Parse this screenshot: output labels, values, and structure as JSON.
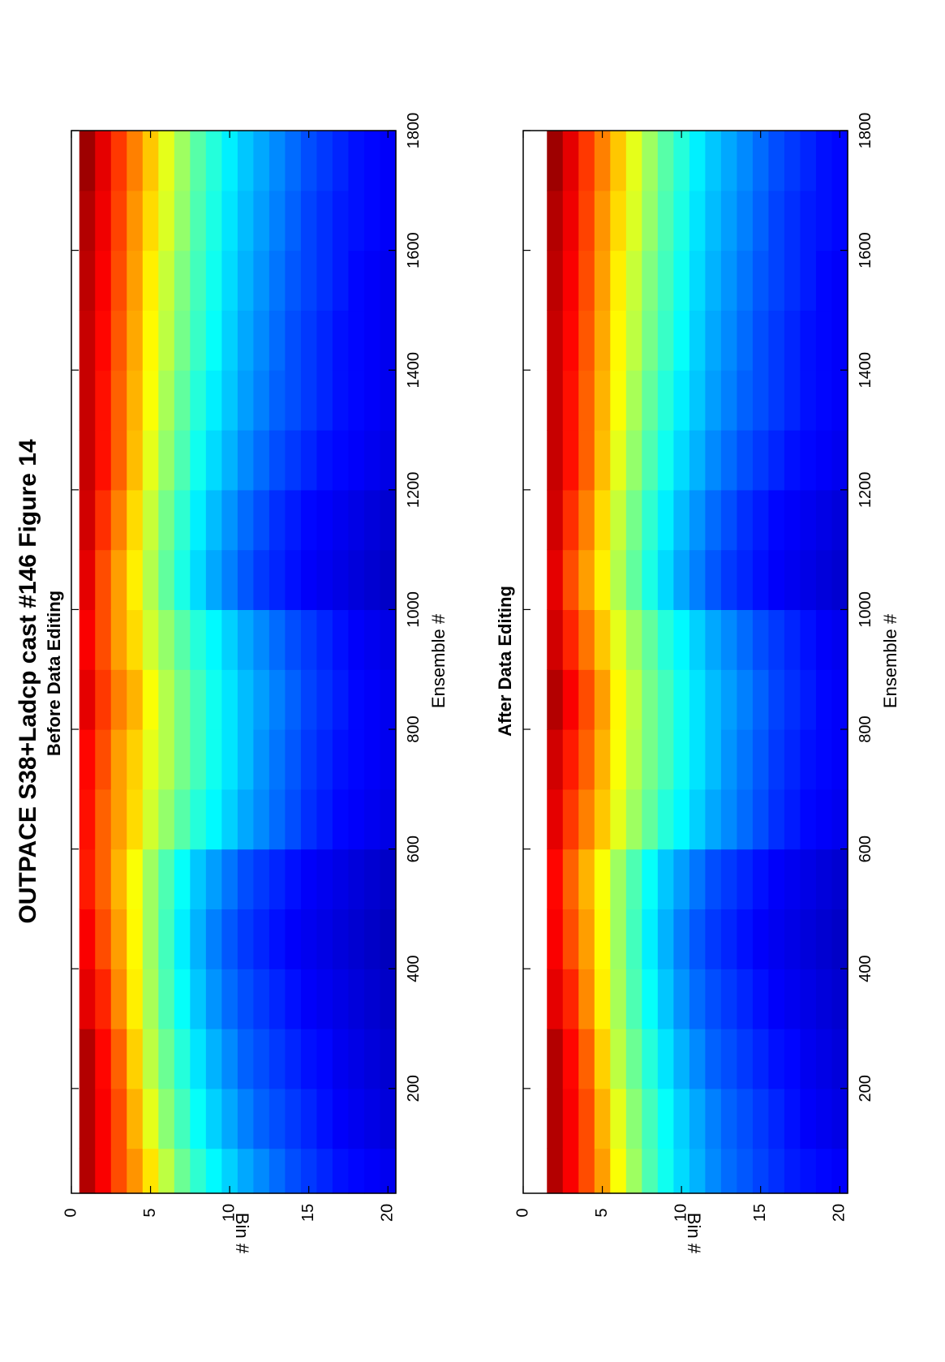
{
  "figure": {
    "title": "OUTPACE S38+Ladcp cast #146  Figure 14"
  },
  "chart_data": [
    {
      "type": "heatmap",
      "title": "Before Data Editing",
      "xlabel": "Ensemble #",
      "ylabel": "Bin #",
      "xlim": [
        25,
        1800
      ],
      "ylim": [
        0,
        20.5
      ],
      "xticks": [
        200,
        400,
        600,
        800,
        1000,
        1200,
        1400,
        1600,
        1800
      ],
      "yticks": [
        0,
        5,
        10,
        15,
        20
      ],
      "colormap": "jet",
      "bins": [
        1,
        2,
        3,
        4,
        5,
        6,
        7,
        8,
        9,
        10,
        11,
        12,
        13,
        14,
        15,
        16,
        17,
        18,
        19,
        20
      ],
      "ensemble_columns": [
        50,
        150,
        250,
        350,
        450,
        550,
        650,
        750,
        850,
        950,
        1050,
        1150,
        1250,
        1350,
        1450,
        1550,
        1650,
        1750
      ],
      "normalized_intensity_by_bin": [
        [
          0.95,
          0.95,
          0.95,
          0.9,
          0.88,
          0.85,
          0.86,
          0.87,
          0.9,
          0.88,
          0.9,
          0.92,
          0.93,
          0.93,
          0.93,
          0.94,
          0.95,
          0.97
        ],
        [
          0.88,
          0.88,
          0.87,
          0.84,
          0.8,
          0.78,
          0.78,
          0.8,
          0.82,
          0.8,
          0.8,
          0.83,
          0.86,
          0.86,
          0.87,
          0.88,
          0.89,
          0.9
        ],
        [
          0.8,
          0.8,
          0.78,
          0.74,
          0.72,
          0.7,
          0.72,
          0.72,
          0.75,
          0.72,
          0.72,
          0.75,
          0.78,
          0.78,
          0.79,
          0.8,
          0.81,
          0.82
        ],
        [
          0.73,
          0.7,
          0.67,
          0.64,
          0.63,
          0.62,
          0.66,
          0.67,
          0.7,
          0.66,
          0.64,
          0.66,
          0.69,
          0.7,
          0.71,
          0.72,
          0.73,
          0.75
        ],
        [
          0.65,
          0.6,
          0.56,
          0.54,
          0.53,
          0.53,
          0.58,
          0.6,
          0.62,
          0.58,
          0.55,
          0.57,
          0.6,
          0.62,
          0.63,
          0.64,
          0.66,
          0.68
        ],
        [
          0.56,
          0.51,
          0.48,
          0.45,
          0.44,
          0.45,
          0.52,
          0.55,
          0.55,
          0.52,
          0.47,
          0.49,
          0.52,
          0.54,
          0.56,
          0.57,
          0.59,
          0.6
        ],
        [
          0.48,
          0.44,
          0.41,
          0.38,
          0.36,
          0.38,
          0.46,
          0.49,
          0.49,
          0.46,
          0.4,
          0.42,
          0.45,
          0.47,
          0.49,
          0.5,
          0.52,
          0.53
        ],
        [
          0.42,
          0.38,
          0.35,
          0.32,
          0.3,
          0.32,
          0.41,
          0.44,
          0.44,
          0.41,
          0.34,
          0.36,
          0.39,
          0.41,
          0.43,
          0.44,
          0.45,
          0.46
        ],
        [
          0.37,
          0.33,
          0.3,
          0.27,
          0.25,
          0.28,
          0.37,
          0.39,
          0.39,
          0.37,
          0.29,
          0.31,
          0.34,
          0.36,
          0.38,
          0.39,
          0.4,
          0.41
        ],
        [
          0.33,
          0.29,
          0.26,
          0.23,
          0.21,
          0.24,
          0.33,
          0.35,
          0.35,
          0.33,
          0.25,
          0.27,
          0.3,
          0.32,
          0.33,
          0.34,
          0.35,
          0.36
        ],
        [
          0.29,
          0.25,
          0.22,
          0.2,
          0.18,
          0.2,
          0.29,
          0.31,
          0.31,
          0.29,
          0.21,
          0.23,
          0.26,
          0.28,
          0.29,
          0.3,
          0.31,
          0.32
        ],
        [
          0.26,
          0.22,
          0.2,
          0.18,
          0.16,
          0.18,
          0.26,
          0.27,
          0.28,
          0.26,
          0.18,
          0.2,
          0.23,
          0.25,
          0.26,
          0.27,
          0.28,
          0.29
        ],
        [
          0.23,
          0.2,
          0.18,
          0.16,
          0.14,
          0.16,
          0.23,
          0.24,
          0.25,
          0.23,
          0.16,
          0.17,
          0.2,
          0.22,
          0.23,
          0.24,
          0.25,
          0.26
        ],
        [
          0.2,
          0.18,
          0.16,
          0.14,
          0.12,
          0.14,
          0.2,
          0.21,
          0.22,
          0.2,
          0.14,
          0.15,
          0.18,
          0.2,
          0.2,
          0.21,
          0.22,
          0.23
        ],
        [
          0.18,
          0.16,
          0.14,
          0.12,
          0.11,
          0.12,
          0.17,
          0.18,
          0.19,
          0.18,
          0.12,
          0.13,
          0.16,
          0.18,
          0.18,
          0.19,
          0.19,
          0.2
        ],
        [
          0.16,
          0.14,
          0.13,
          0.11,
          0.1,
          0.11,
          0.15,
          0.16,
          0.17,
          0.16,
          0.11,
          0.12,
          0.14,
          0.16,
          0.16,
          0.17,
          0.17,
          0.18
        ],
        [
          0.14,
          0.12,
          0.11,
          0.1,
          0.09,
          0.1,
          0.13,
          0.14,
          0.15,
          0.14,
          0.1,
          0.11,
          0.13,
          0.14,
          0.14,
          0.15,
          0.15,
          0.16
        ],
        [
          0.13,
          0.11,
          0.1,
          0.09,
          0.08,
          0.09,
          0.12,
          0.13,
          0.13,
          0.12,
          0.09,
          0.1,
          0.12,
          0.13,
          0.13,
          0.13,
          0.14,
          0.14
        ],
        [
          0.12,
          0.1,
          0.09,
          0.08,
          0.07,
          0.08,
          0.11,
          0.12,
          0.12,
          0.11,
          0.08,
          0.09,
          0.11,
          0.12,
          0.12,
          0.12,
          0.13,
          0.13
        ],
        [
          0.11,
          0.09,
          0.08,
          0.07,
          0.06,
          0.07,
          0.1,
          0.11,
          0.11,
          0.1,
          0.07,
          0.08,
          0.1,
          0.11,
          0.11,
          0.11,
          0.12,
          0.12
        ]
      ]
    },
    {
      "type": "heatmap",
      "title": "After Data Editing",
      "xlabel": "Ensemble #",
      "ylabel": "Bin #",
      "xlim": [
        25,
        1800
      ],
      "ylim": [
        0,
        20.5
      ],
      "xticks": [
        200,
        400,
        600,
        800,
        1000,
        1200,
        1400,
        1600,
        1800
      ],
      "yticks": [
        0,
        5,
        10,
        15,
        20
      ],
      "colormap": "jet",
      "bins": [
        2,
        3,
        4,
        5,
        6,
        7,
        8,
        9,
        10,
        11,
        12,
        13,
        14,
        15,
        16,
        17,
        18,
        19,
        20
      ],
      "ensemble_columns": [
        50,
        150,
        250,
        350,
        450,
        550,
        650,
        750,
        850,
        950,
        1050,
        1150,
        1250,
        1350,
        1450,
        1550,
        1650,
        1750
      ],
      "normalized_intensity_by_bin": [
        [
          0.95,
          0.95,
          0.95,
          0.9,
          0.88,
          0.87,
          0.9,
          0.92,
          0.95,
          0.92,
          0.9,
          0.92,
          0.93,
          0.93,
          0.93,
          0.94,
          0.95,
          0.97
        ],
        [
          0.88,
          0.88,
          0.87,
          0.84,
          0.8,
          0.78,
          0.82,
          0.85,
          0.88,
          0.84,
          0.8,
          0.83,
          0.86,
          0.86,
          0.87,
          0.88,
          0.89,
          0.9
        ],
        [
          0.8,
          0.8,
          0.78,
          0.74,
          0.72,
          0.7,
          0.75,
          0.78,
          0.8,
          0.76,
          0.72,
          0.75,
          0.78,
          0.78,
          0.79,
          0.8,
          0.81,
          0.82
        ],
        [
          0.72,
          0.7,
          0.67,
          0.64,
          0.63,
          0.62,
          0.68,
          0.7,
          0.72,
          0.68,
          0.64,
          0.66,
          0.69,
          0.7,
          0.71,
          0.72,
          0.73,
          0.75
        ],
        [
          0.62,
          0.6,
          0.56,
          0.54,
          0.53,
          0.53,
          0.6,
          0.62,
          0.63,
          0.6,
          0.55,
          0.57,
          0.6,
          0.62,
          0.63,
          0.64,
          0.66,
          0.68
        ],
        [
          0.53,
          0.51,
          0.48,
          0.45,
          0.44,
          0.45,
          0.53,
          0.55,
          0.56,
          0.53,
          0.47,
          0.49,
          0.52,
          0.54,
          0.56,
          0.57,
          0.59,
          0.6
        ],
        [
          0.45,
          0.44,
          0.41,
          0.38,
          0.36,
          0.38,
          0.47,
          0.49,
          0.49,
          0.47,
          0.4,
          0.42,
          0.45,
          0.47,
          0.49,
          0.5,
          0.52,
          0.53
        ],
        [
          0.39,
          0.38,
          0.35,
          0.32,
          0.3,
          0.32,
          0.41,
          0.44,
          0.44,
          0.41,
          0.34,
          0.36,
          0.39,
          0.41,
          0.43,
          0.44,
          0.45,
          0.46
        ],
        [
          0.34,
          0.33,
          0.3,
          0.27,
          0.25,
          0.28,
          0.37,
          0.39,
          0.39,
          0.37,
          0.29,
          0.31,
          0.34,
          0.36,
          0.38,
          0.39,
          0.4,
          0.41
        ],
        [
          0.3,
          0.29,
          0.26,
          0.23,
          0.21,
          0.24,
          0.33,
          0.35,
          0.35,
          0.33,
          0.25,
          0.27,
          0.3,
          0.32,
          0.33,
          0.34,
          0.35,
          0.36
        ],
        [
          0.26,
          0.25,
          0.22,
          0.2,
          0.18,
          0.2,
          0.29,
          0.31,
          0.31,
          0.29,
          0.21,
          0.23,
          0.26,
          0.28,
          0.29,
          0.3,
          0.31,
          0.32
        ],
        [
          0.23,
          0.22,
          0.2,
          0.18,
          0.16,
          0.18,
          0.26,
          0.27,
          0.28,
          0.26,
          0.18,
          0.2,
          0.23,
          0.25,
          0.26,
          0.27,
          0.28,
          0.29
        ],
        [
          0.21,
          0.2,
          0.18,
          0.16,
          0.14,
          0.16,
          0.23,
          0.24,
          0.25,
          0.23,
          0.16,
          0.17,
          0.2,
          0.22,
          0.23,
          0.24,
          0.25,
          0.26
        ],
        [
          0.19,
          0.18,
          0.16,
          0.14,
          0.12,
          0.14,
          0.2,
          0.21,
          0.22,
          0.2,
          0.14,
          0.15,
          0.18,
          0.2,
          0.2,
          0.21,
          0.22,
          0.23
        ],
        [
          0.17,
          0.16,
          0.14,
          0.12,
          0.11,
          0.12,
          0.17,
          0.18,
          0.19,
          0.18,
          0.12,
          0.13,
          0.16,
          0.18,
          0.18,
          0.19,
          0.19,
          0.2
        ],
        [
          0.15,
          0.14,
          0.13,
          0.11,
          0.1,
          0.11,
          0.15,
          0.16,
          0.17,
          0.16,
          0.11,
          0.12,
          0.14,
          0.16,
          0.16,
          0.17,
          0.17,
          0.18
        ],
        [
          0.14,
          0.12,
          0.11,
          0.1,
          0.09,
          0.1,
          0.13,
          0.14,
          0.15,
          0.14,
          0.1,
          0.11,
          0.13,
          0.14,
          0.14,
          0.15,
          0.15,
          0.16
        ],
        [
          0.13,
          0.11,
          0.1,
          0.09,
          0.08,
          0.09,
          0.12,
          0.13,
          0.13,
          0.12,
          0.09,
          0.1,
          0.12,
          0.13,
          0.13,
          0.13,
          0.14,
          0.14
        ],
        [
          0.12,
          0.1,
          0.09,
          0.08,
          0.07,
          0.08,
          0.11,
          0.12,
          0.12,
          0.11,
          0.08,
          0.09,
          0.11,
          0.12,
          0.12,
          0.12,
          0.13,
          0.13
        ]
      ]
    }
  ]
}
